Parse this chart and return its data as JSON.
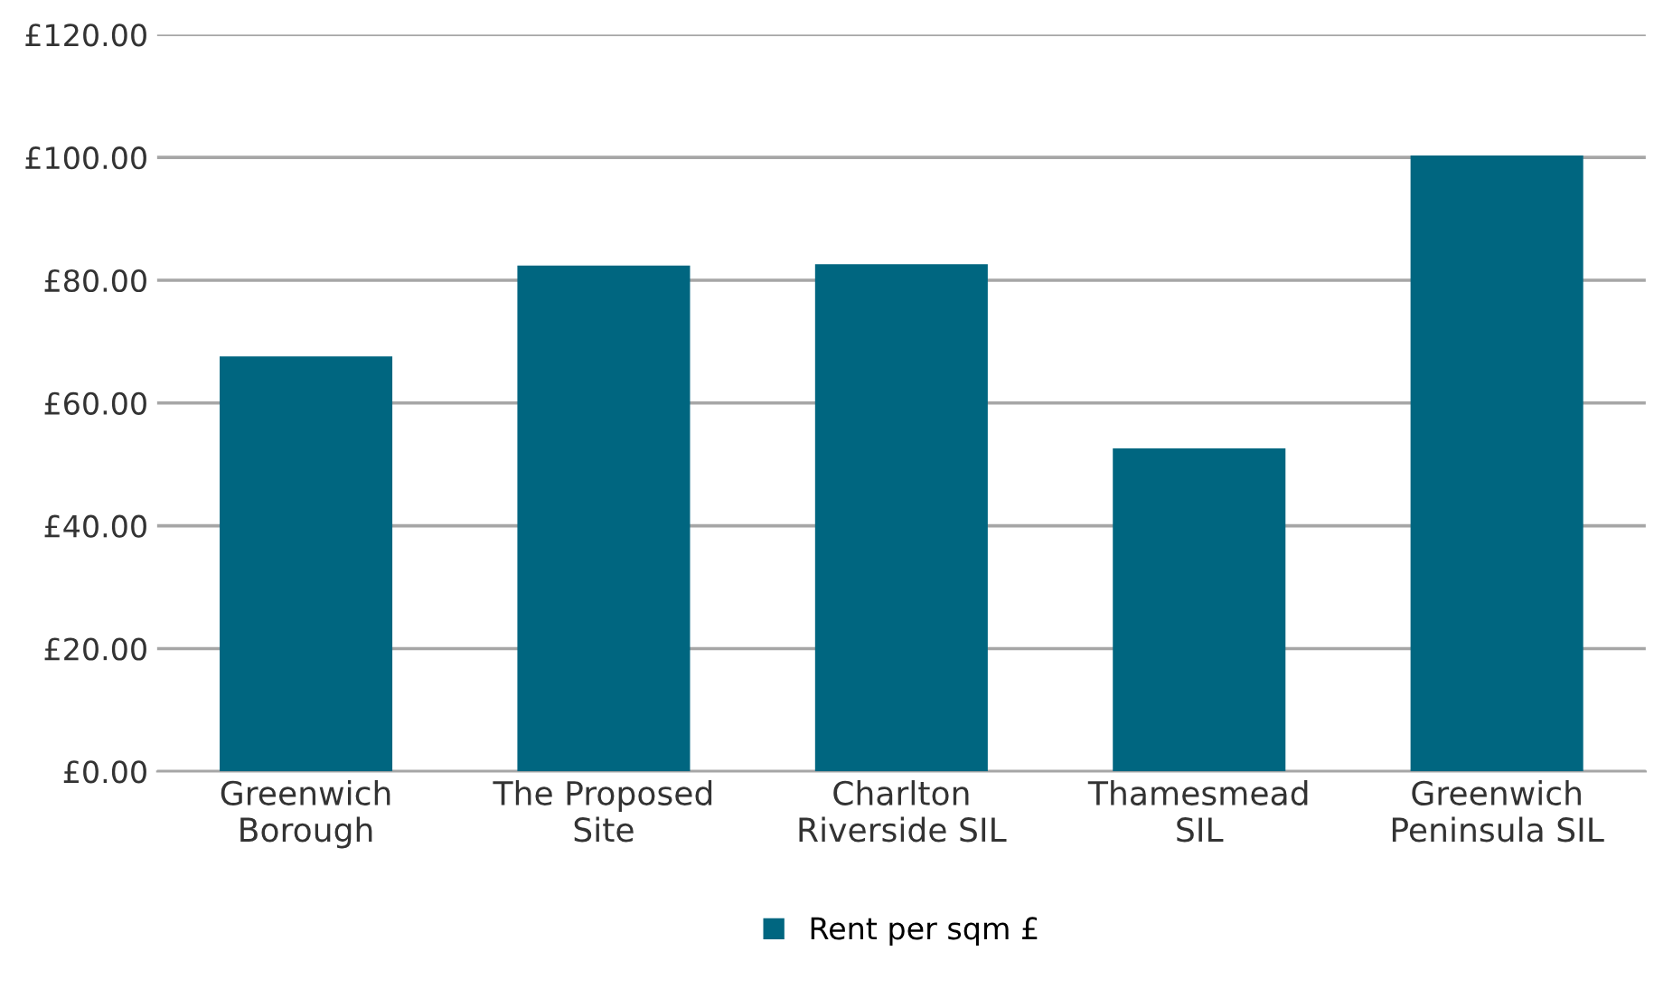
{
  "chart_data": {
    "type": "bar",
    "categories": [
      "Greenwich\nBorough",
      "The Proposed\nSite",
      "Charlton\nRiverside SIL",
      "Thamesmead\nSIL",
      "Greenwich\nPeninsula SIL"
    ],
    "series": [
      {
        "name": "Rent per sqm £",
        "color": "#006680",
        "values": [
          67.6,
          82.4,
          82.6,
          52.6,
          100.3
        ]
      }
    ],
    "ylim": [
      0,
      120
    ],
    "yticks": [
      {
        "value": 0,
        "label": "£0.00"
      },
      {
        "value": 20,
        "label": "£20.00"
      },
      {
        "value": 40,
        "label": "£40.00"
      },
      {
        "value": 60,
        "label": "£60.00"
      },
      {
        "value": 80,
        "label": "£80.00"
      },
      {
        "value": 100,
        "label": "£100.00"
      },
      {
        "value": 120,
        "label": "£120.00"
      }
    ],
    "grid": "y",
    "legend": "bottom"
  }
}
